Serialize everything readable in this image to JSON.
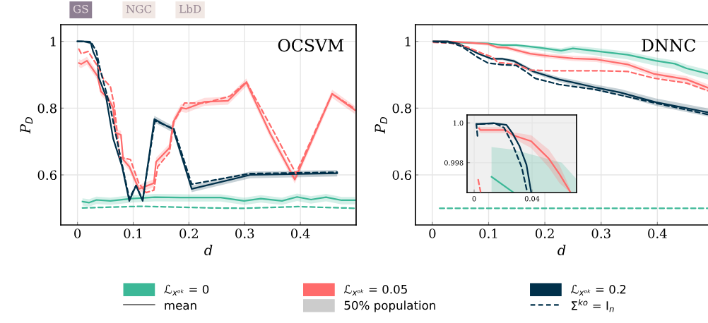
{
  "chart_data": [
    {
      "type": "line",
      "title": "OCSVM",
      "xlabel": "d",
      "ylabel": "P$_{D}$",
      "xlim": [
        -0.03,
        0.5
      ],
      "ylim": [
        0.45,
        1.05
      ],
      "xticks": [
        0,
        0.1,
        0.2,
        0.3,
        0.4
      ],
      "yticks": [
        0.6,
        0.8,
        1
      ],
      "grid": true,
      "legend": "bottom",
      "annotations": [
        "mean",
        "50% population",
        "GS",
        "NGC",
        "LbD"
      ],
      "series": [
        {
          "name": "ℒ$_{xᵒᵏ}$ = 0",
          "color": "#3cb897",
          "x": [
            0.009,
            0.021,
            0.034,
            0.059,
            0.097,
            0.139,
            0.198,
            0.257,
            0.299,
            0.329,
            0.367,
            0.394,
            0.419,
            0.446,
            0.474,
            0.498
          ],
          "values": [
            0.52,
            0.517,
            0.525,
            0.522,
            0.529,
            0.533,
            0.532,
            0.532,
            0.522,
            0.529,
            0.522,
            0.534,
            0.526,
            0.533,
            0.524,
            0.524
          ],
          "lower": [
            0.508,
            0.505,
            0.513,
            0.51,
            0.517,
            0.521,
            0.52,
            0.52,
            0.51,
            0.517,
            0.51,
            0.522,
            0.514,
            0.521,
            0.512,
            0.512
          ],
          "upper": [
            0.53,
            0.527,
            0.535,
            0.532,
            0.539,
            0.543,
            0.542,
            0.542,
            0.532,
            0.539,
            0.532,
            0.544,
            0.536,
            0.543,
            0.534,
            0.534
          ]
        },
        {
          "color": "#3cb897",
          "line_style": "dashed",
          "x": [
            0.009,
            0.114,
            0.24,
            0.299,
            0.396,
            0.498
          ],
          "values": [
            0.501,
            0.506,
            0.501,
            0.5,
            0.505,
            0.5
          ]
        },
        {
          "name": "ℒ$_{xᵒᵏ}$ = 0.05",
          "color": "#ff6b6b",
          "x": [
            0.0025,
            0.0067,
            0.017,
            0.036,
            0.042,
            0.055,
            0.064,
            0.068,
            0.078,
            0.082,
            0.093,
            0.11,
            0.137,
            0.141,
            0.165,
            0.172,
            0.186,
            0.195,
            0.228,
            0.27,
            0.303,
            0.346,
            0.39,
            0.457,
            0.498
          ],
          "values": [
            0.935,
            0.932,
            0.942,
            0.896,
            0.85,
            0.829,
            0.801,
            0.727,
            0.72,
            0.646,
            0.625,
            0.558,
            0.575,
            0.639,
            0.681,
            0.759,
            0.801,
            0.798,
            0.819,
            0.822,
            0.877,
            0.723,
            0.586,
            0.843,
            0.794
          ],
          "lower": [
            0.923,
            0.92,
            0.93,
            0.884,
            0.838,
            0.817,
            0.789,
            0.715,
            0.708,
            0.634,
            0.613,
            0.546,
            0.563,
            0.627,
            0.669,
            0.747,
            0.789,
            0.786,
            0.807,
            0.81,
            0.865,
            0.711,
            0.574,
            0.831,
            0.782
          ],
          "upper": [
            0.947,
            0.944,
            0.954,
            0.908,
            0.862,
            0.841,
            0.813,
            0.739,
            0.732,
            0.658,
            0.637,
            0.57,
            0.587,
            0.651,
            0.693,
            0.771,
            0.813,
            0.81,
            0.831,
            0.834,
            0.889,
            0.735,
            0.598,
            0.855,
            0.806
          ]
        },
        {
          "color": "#ff6b6b",
          "line_style": "dashed",
          "x": [
            0.0025,
            0.0067,
            0.019,
            0.038,
            0.047,
            0.059,
            0.066,
            0.076,
            0.095,
            0.11,
            0.123,
            0.137,
            0.144,
            0.165,
            0.173,
            0.192,
            0.228,
            0.274,
            0.303,
            0.352,
            0.392,
            0.457,
            0.498
          ],
          "values": [
            0.977,
            0.963,
            0.97,
            0.921,
            0.886,
            0.865,
            0.808,
            0.653,
            0.646,
            0.575,
            0.547,
            0.554,
            0.625,
            0.667,
            0.759,
            0.815,
            0.815,
            0.836,
            0.879,
            0.73,
            0.604,
            0.843,
            0.798
          ]
        },
        {
          "name": "ℒ$_{xᵒᵏ}$ = 0.2",
          "color": "#00304a",
          "x": [
            0,
            0.011,
            0.024,
            0.028,
            0.036,
            0.038,
            0.051,
            0.064,
            0.08,
            0.093,
            0.105,
            0.117,
            0.138,
            0.172,
            0.205,
            0.31,
            0.466
          ],
          "values": [
            1.0,
            1.0,
            0.995,
            0.97,
            0.94,
            0.893,
            0.836,
            0.709,
            0.625,
            0.522,
            0.568,
            0.522,
            0.767,
            0.736,
            0.558,
            0.6,
            0.605
          ],
          "lower": [
            0.997,
            0.997,
            0.991,
            0.966,
            0.936,
            0.889,
            0.832,
            0.705,
            0.621,
            0.518,
            0.564,
            0.518,
            0.757,
            0.726,
            0.548,
            0.59,
            0.595
          ],
          "upper": [
            1.0,
            1.0,
            0.999,
            0.974,
            0.944,
            0.897,
            0.84,
            0.713,
            0.629,
            0.526,
            0.572,
            0.526,
            0.777,
            0.746,
            0.568,
            0.61,
            0.615
          ]
        },
        {
          "name": "Σ$^{ko}$ = I$_{n}$",
          "color": "#00304a",
          "line_style": "dashed",
          "x": [
            0,
            0.024,
            0.034,
            0.04,
            0.059,
            0.072,
            0.093,
            0.105,
            0.117,
            0.139,
            0.173,
            0.205,
            0.31,
            0.466
          ],
          "values": [
            1.0,
            0.999,
            0.97,
            0.921,
            0.801,
            0.695,
            0.529,
            0.568,
            0.526,
            0.762,
            0.738,
            0.572,
            0.604,
            0.608
          ]
        }
      ]
    },
    {
      "type": "line",
      "title": "DNNC",
      "xlabel": "d",
      "ylabel": "P$_{D}$",
      "xlim": [
        -0.03,
        0.49
      ],
      "ylim": [
        0.45,
        1.05
      ],
      "xticks": [
        0,
        0.1,
        0.2,
        0.3,
        0.4
      ],
      "yticks": [
        0.6,
        0.8,
        1
      ],
      "grid": true,
      "series": [
        {
          "color": "#3cb897",
          "x": [
            0.002,
            0.04,
            0.099,
            0.124,
            0.149,
            0.191,
            0.229,
            0.25,
            0.296,
            0.347,
            0.397,
            0.431,
            0.452,
            0.49
          ],
          "values": [
            1.0,
            0.997,
            0.994,
            0.989,
            0.989,
            0.981,
            0.972,
            0.979,
            0.97,
            0.96,
            0.942,
            0.933,
            0.919,
            0.903
          ],
          "lower": [
            0.999,
            0.995,
            0.99,
            0.984,
            0.983,
            0.973,
            0.962,
            0.967,
            0.957,
            0.946,
            0.927,
            0.917,
            0.902,
            0.886
          ],
          "upper": [
            1.0,
            0.999,
            0.996,
            0.992,
            0.992,
            0.986,
            0.979,
            0.987,
            0.979,
            0.969,
            0.952,
            0.943,
            0.93,
            0.914
          ]
        },
        {
          "color": "#3cb897",
          "line_style": "dashed",
          "x": [
            0.013,
            0.49
          ],
          "values": [
            0.5,
            0.5
          ]
        },
        {
          "color": "#ff6b6b",
          "x": [
            0.002,
            0.04,
            0.099,
            0.116,
            0.132,
            0.174,
            0.208,
            0.25,
            0.292,
            0.347,
            0.393,
            0.452,
            0.49
          ],
          "values": [
            1.0,
            0.999,
            0.992,
            0.982,
            0.981,
            0.963,
            0.956,
            0.949,
            0.946,
            0.931,
            0.903,
            0.886,
            0.861
          ],
          "lower": [
            0.998,
            0.995,
            0.987,
            0.976,
            0.975,
            0.956,
            0.949,
            0.941,
            0.938,
            0.922,
            0.894,
            0.876,
            0.851
          ],
          "upper": [
            1.0,
            1.0,
            0.997,
            0.988,
            0.987,
            0.969,
            0.963,
            0.957,
            0.954,
            0.94,
            0.912,
            0.896,
            0.871
          ]
        },
        {
          "color": "#ff6b6b",
          "line_style": "dashed",
          "x": [
            0.002,
            0.032,
            0.061,
            0.09,
            0.107,
            0.116,
            0.149,
            0.174,
            0.208,
            0.292,
            0.347,
            0.393,
            0.452,
            0.49
          ],
          "values": [
            0.997,
            0.995,
            0.984,
            0.963,
            0.953,
            0.937,
            0.931,
            0.914,
            0.912,
            0.912,
            0.91,
            0.89,
            0.875,
            0.852
          ]
        },
        {
          "color": "#00304a",
          "x": [
            0.002,
            0.027,
            0.048,
            0.082,
            0.105,
            0.124,
            0.145,
            0.179,
            0.225,
            0.25,
            0.292,
            0.334,
            0.397,
            0.49
          ],
          "values": [
            1.0,
            1.0,
            0.992,
            0.963,
            0.948,
            0.948,
            0.941,
            0.91,
            0.886,
            0.877,
            0.861,
            0.847,
            0.818,
            0.787
          ],
          "lower": [
            0.999,
            0.999,
            0.99,
            0.96,
            0.944,
            0.944,
            0.936,
            0.904,
            0.879,
            0.869,
            0.852,
            0.837,
            0.807,
            0.775
          ],
          "upper": [
            1.0,
            1.0,
            0.994,
            0.966,
            0.952,
            0.952,
            0.946,
            0.916,
            0.893,
            0.885,
            0.87,
            0.857,
            0.829,
            0.799
          ]
        },
        {
          "color": "#00304a",
          "line_style": "dashed",
          "x": [
            0.002,
            0.036,
            0.053,
            0.08,
            0.099,
            0.124,
            0.149,
            0.166,
            0.183,
            0.225,
            0.292,
            0.397,
            0.49
          ],
          "values": [
            0.999,
            0.995,
            0.984,
            0.953,
            0.935,
            0.93,
            0.928,
            0.91,
            0.889,
            0.871,
            0.855,
            0.815,
            0.781
          ]
        }
      ]
    },
    {
      "type": "line",
      "xlim": [
        -0.0049,
        0.0707
      ],
      "ylim": [
        0.9965,
        1.0004
      ],
      "xticks": [
        0,
        0.04
      ],
      "yticks": [
        0.998,
        {
          "value": 1,
          "label": "1.0"
        }
      ],
      "grid": true,
      "series": [
        {
          "color": "#3cb897",
          "x": [
            0.012,
            0.0272,
            0.0605,
            0.0707
          ],
          "values": [
            0.99729,
            0.9965,
            null,
            null
          ],
          "lower": [
            0.9965,
            0.9965,
            0.9965,
            0.9965
          ],
          "upper": [
            0.99879,
            0.99865,
            0.998,
            0.99717
          ]
        },
        {
          "color": "#ff6b6b",
          "x": [
            0.0033,
            0.0044,
            0.0215,
            0.0272,
            0.0394,
            0.0516,
            0.0589,
            0.0662
          ],
          "values": [
            0.99973,
            0.99964,
            0.99964,
            0.99937,
            0.99908,
            0.9982,
            0.99743,
            0.99655
          ],
          "lower": [
            0.99958,
            0.99949,
            0.99949,
            0.99922,
            0.99873,
            0.99775,
            0.99698,
            0.9965
          ],
          "upper": [
            0.99988,
            0.99979,
            0.99979,
            0.99952,
            0.99938,
            0.99865,
            0.99788,
            0.9967
          ]
        },
        {
          "color": "#ff6b6b",
          "line_style": "dashed",
          "x": [
            0.0028,
            0.0044
          ],
          "values": [
            0.99714,
            0.99655
          ]
        },
        {
          "color": "#00304a",
          "x": [
            0.0015,
            0.0133,
            0.0223,
            0.0263,
            0.0312,
            0.0361,
            0.0394
          ],
          "values": [
            0.99994,
            0.99999,
            0.9999,
            0.9995,
            0.99885,
            0.9979,
            0.9965
          ]
        },
        {
          "color": "#00304a",
          "line_style": "dashed",
          "x": [
            0.0023,
            0.0015,
            0.0146,
            0.0206,
            0.0263,
            0.0328,
            0.0364
          ],
          "values": [
            0.99935,
            0.99994,
            0.99997,
            0.99976,
            0.99896,
            0.99778,
            0.9966
          ]
        }
      ]
    }
  ]
}
